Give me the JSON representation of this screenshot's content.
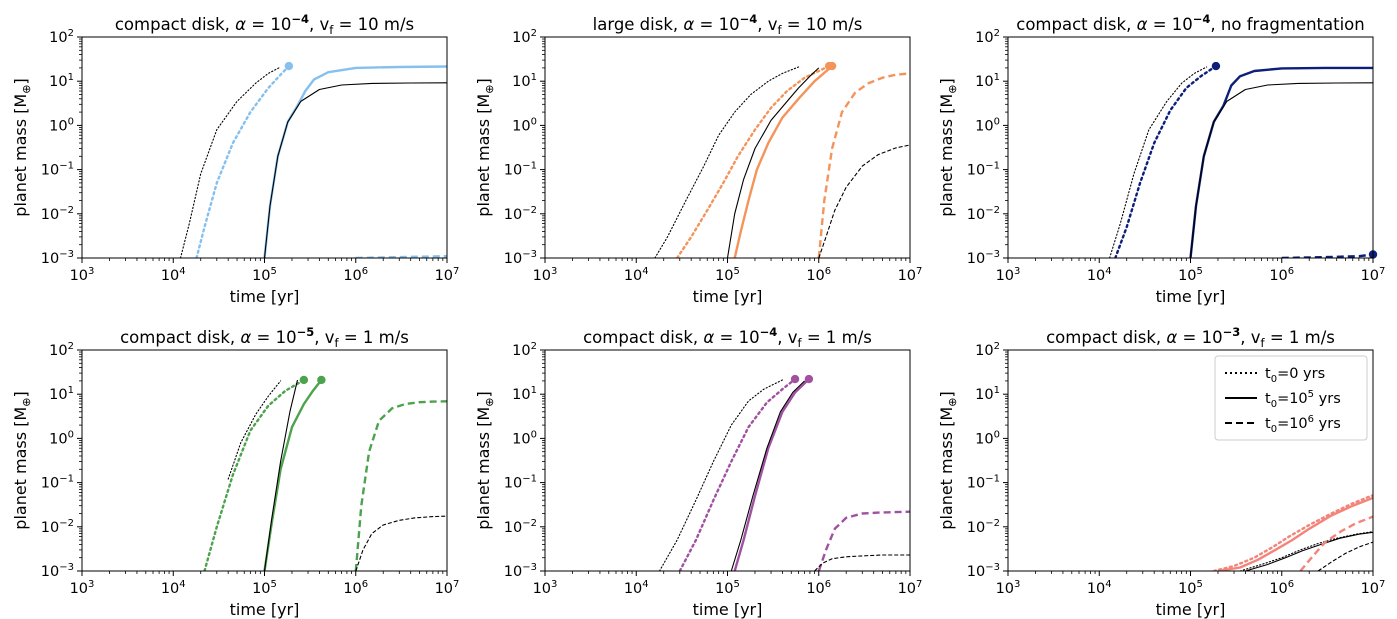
{
  "figure": {
    "ylabel": "planet mass [M",
    "ylabel_sub": "⊕",
    "ylabel_close": "]",
    "xlabel": "time [yr]"
  },
  "legend": {
    "entries": [
      {
        "style": "dotted",
        "pre": "t",
        "sub": "0",
        "eq": "=0 yrs",
        "sup": "",
        "post": ""
      },
      {
        "style": "solid",
        "pre": "t",
        "sub": "0",
        "eq": "=10",
        "sup": "5",
        "post": " yrs"
      },
      {
        "style": "dashed",
        "pre": "t",
        "sub": "0",
        "eq": "=10",
        "sup": "6",
        "post": " yrs"
      }
    ]
  },
  "chart_data": [
    {
      "type": "line",
      "title": {
        "pre": "compact disk, ",
        "alpha": "α",
        "eq": " = 10",
        "exp": "−4",
        "post": ", v",
        "sub": "f",
        "tail": " = 10 m/s"
      },
      "xscale": "log",
      "yscale": "log",
      "xlim": [
        1000,
        10000000
      ],
      "ylim": [
        0.001,
        100
      ],
      "color": "#85C0EE",
      "series": [
        {
          "style": "dotted",
          "color": "#85C0EE",
          "x": [
            18000,
            22000,
            30000,
            45000,
            70000,
            110000,
            150000,
            185000
          ],
          "y": [
            0.001,
            0.005,
            0.05,
            0.4,
            2.0,
            7.0,
            14.0,
            22.0
          ],
          "end_marker": true
        },
        {
          "style": "dotted",
          "color": "#000000",
          "x": [
            12000,
            15000,
            20000,
            30000,
            50000,
            80000,
            110000,
            150000
          ],
          "y": [
            0.001,
            0.006,
            0.08,
            0.8,
            3.5,
            9.0,
            15.0,
            21.0
          ]
        },
        {
          "style": "solid",
          "color": "#85C0EE",
          "x": [
            100000,
            115000,
            140000,
            180000,
            230000,
            280000,
            350000,
            500000,
            1000000,
            3000000,
            10000000
          ],
          "y": [
            0.001,
            0.015,
            0.2,
            1.2,
            2.8,
            6.0,
            11.0,
            16.0,
            20.0,
            21.0,
            21.5
          ]
        },
        {
          "style": "solid",
          "color": "#000000",
          "x": [
            100000,
            115000,
            140000,
            180000,
            250000,
            400000,
            700000,
            1500000,
            4000000,
            10000000
          ],
          "y": [
            0.001,
            0.015,
            0.2,
            1.2,
            3.5,
            6.5,
            8.2,
            8.9,
            9.1,
            9.2
          ]
        },
        {
          "style": "dashed",
          "color": "#85C0EE",
          "x": [
            1000000,
            3000000,
            10000000
          ],
          "y": [
            0.001,
            0.00105,
            0.0011
          ]
        },
        {
          "style": "dashed",
          "color": "#000000",
          "x": [
            1000000,
            3000000,
            10000000
          ],
          "y": [
            0.001,
            0.001,
            0.001
          ]
        }
      ]
    },
    {
      "type": "line",
      "title": {
        "pre": "large disk, ",
        "alpha": "α",
        "eq": " = 10",
        "exp": "−4",
        "post": ", v",
        "sub": "f",
        "tail": " = 10 m/s"
      },
      "xscale": "log",
      "yscale": "log",
      "xlim": [
        1000,
        10000000
      ],
      "ylim": [
        0.001,
        100
      ],
      "color": "#F4945A",
      "series": [
        {
          "style": "dotted",
          "color": "#F4945A",
          "x": [
            28000,
            40000,
            60000,
            90000,
            130000,
            200000,
            300000,
            450000,
            700000,
            1300000
          ],
          "y": [
            0.001,
            0.003,
            0.012,
            0.05,
            0.2,
            0.8,
            2.5,
            6.0,
            12.0,
            22.0
          ],
          "end_marker": true
        },
        {
          "style": "dotted",
          "color": "#000000",
          "x": [
            16000,
            22000,
            35000,
            55000,
            80000,
            120000,
            180000,
            280000,
            400000,
            600000
          ],
          "y": [
            0.001,
            0.003,
            0.02,
            0.12,
            0.6,
            2.0,
            5.0,
            10.0,
            15.0,
            21.0
          ]
        },
        {
          "style": "solid",
          "color": "#F4945A",
          "x": [
            120000,
            140000,
            170000,
            210000,
            280000,
            400000,
            600000,
            900000,
            1400000
          ],
          "y": [
            0.001,
            0.004,
            0.02,
            0.1,
            0.4,
            1.5,
            4.0,
            10.0,
            22.0
          ],
          "end_marker": true
        },
        {
          "style": "solid",
          "color": "#000000",
          "x": [
            100000,
            120000,
            150000,
            200000,
            300000,
            450000,
            600000,
            800000,
            1000000
          ],
          "y": [
            0.001,
            0.01,
            0.06,
            0.3,
            1.3,
            3.5,
            7.0,
            13.0,
            20.0
          ]
        },
        {
          "style": "dashed",
          "color": "#F4945A",
          "x": [
            1000000,
            1150000,
            1400000,
            1800000,
            2500000,
            3500000,
            5000000,
            7000000,
            10000000
          ],
          "y": [
            0.001,
            0.02,
            0.3,
            2.0,
            5.5,
            9.0,
            12.0,
            14.0,
            15.0
          ]
        },
        {
          "style": "dashed",
          "color": "#000000",
          "x": [
            1000000,
            1200000,
            1500000,
            2000000,
            3000000,
            4500000,
            7000000,
            10000000
          ],
          "y": [
            0.001,
            0.003,
            0.012,
            0.04,
            0.12,
            0.22,
            0.31,
            0.36
          ]
        }
      ]
    },
    {
      "type": "line",
      "title": {
        "pre": "compact disk, ",
        "alpha": "α",
        "eq": " = 10",
        "exp": "−4",
        "post": ", no fragmentation",
        "sub": "",
        "tail": ""
      },
      "xscale": "log",
      "yscale": "log",
      "xlim": [
        1000,
        10000000
      ],
      "ylim": [
        0.001,
        100
      ],
      "color": "#0D1F7A",
      "series": [
        {
          "style": "dotted",
          "color": "#0D1F7A",
          "x": [
            15000,
            20000,
            28000,
            40000,
            60000,
            90000,
            130000,
            190000
          ],
          "y": [
            0.001,
            0.005,
            0.05,
            0.4,
            2.2,
            7.0,
            13.0,
            22.0
          ],
          "end_marker": true
        },
        {
          "style": "dotted",
          "color": "#000000",
          "x": [
            13000,
            17000,
            24000,
            35000,
            55000,
            80000,
            110000,
            150000
          ],
          "y": [
            0.001,
            0.006,
            0.08,
            0.8,
            3.5,
            9.0,
            15.0,
            21.0
          ]
        },
        {
          "style": "solid",
          "color": "#0D1F7A",
          "x": [
            100000,
            115000,
            140000,
            180000,
            230000,
            280000,
            350000,
            500000,
            1000000,
            3000000,
            10000000
          ],
          "y": [
            0.001,
            0.015,
            0.2,
            1.2,
            2.8,
            8.0,
            13.0,
            17.0,
            19.5,
            20.0,
            20.0
          ]
        },
        {
          "style": "solid",
          "color": "#000000",
          "x": [
            100000,
            115000,
            140000,
            180000,
            250000,
            400000,
            700000,
            1500000,
            4000000,
            10000000
          ],
          "y": [
            0.001,
            0.015,
            0.2,
            1.2,
            3.5,
            6.5,
            8.2,
            8.9,
            9.1,
            9.2
          ]
        },
        {
          "style": "dashed",
          "color": "#0D1F7A",
          "x": [
            1000000,
            3000000,
            7000000,
            10000000
          ],
          "y": [
            0.001,
            0.00105,
            0.0011,
            0.0012
          ],
          "end_marker": true
        },
        {
          "style": "dashed",
          "color": "#000000",
          "x": [
            1000000,
            3000000,
            10000000
          ],
          "y": [
            0.001,
            0.001,
            0.001
          ]
        }
      ]
    },
    {
      "type": "line",
      "title": {
        "pre": "compact disk, ",
        "alpha": "α",
        "eq": " = 10",
        "exp": "−5",
        "post": ", v",
        "sub": "f",
        "tail": " = 1 m/s"
      },
      "xscale": "log",
      "yscale": "log",
      "xlim": [
        1000,
        10000000
      ],
      "ylim": [
        0.001,
        100
      ],
      "color": "#4DA24D",
      "series": [
        {
          "style": "dotted",
          "color": "#4DA24D",
          "x": [
            22000,
            30000,
            45000,
            70000,
            110000,
            170000,
            270000
          ],
          "y": [
            0.001,
            0.01,
            0.15,
            1.5,
            5.5,
            12.0,
            21.0
          ],
          "end_marker": true
        },
        {
          "style": "dotted",
          "color": "#000000",
          "x": [
            40000,
            55000,
            80000,
            110000,
            150000
          ],
          "y": [
            0.12,
            0.8,
            3.5,
            9.0,
            20.0
          ]
        },
        {
          "style": "solid",
          "color": "#4DA24D",
          "x": [
            100000,
            120000,
            150000,
            200000,
            270000,
            340000,
            420000
          ],
          "y": [
            0.001,
            0.012,
            0.2,
            1.8,
            6.0,
            12.0,
            21.0
          ],
          "end_marker": true
        },
        {
          "style": "solid",
          "color": "#000000",
          "x": [
            100000,
            120000,
            150000,
            190000,
            230000
          ],
          "y": [
            0.001,
            0.015,
            0.3,
            4.0,
            21.0
          ]
        },
        {
          "style": "dashed",
          "color": "#4DA24D",
          "x": [
            1000000,
            1150000,
            1400000,
            1800000,
            2500000,
            3500000,
            5000000,
            7000000,
            10000000
          ],
          "y": [
            0.001,
            0.03,
            0.5,
            2.5,
            4.8,
            6.0,
            6.6,
            6.8,
            6.9
          ]
        },
        {
          "style": "dashed",
          "color": "#000000",
          "x": [
            1000000,
            1200000,
            1500000,
            2000000,
            3000000,
            4500000,
            7000000,
            10000000
          ],
          "y": [
            0.001,
            0.003,
            0.007,
            0.011,
            0.014,
            0.016,
            0.017,
            0.0175
          ]
        }
      ]
    },
    {
      "type": "line",
      "title": {
        "pre": "compact disk, ",
        "alpha": "α",
        "eq": " = 10",
        "exp": "−4",
        "post": ", v",
        "sub": "f",
        "tail": " = 1 m/s"
      },
      "xscale": "log",
      "yscale": "log",
      "xlim": [
        1000,
        10000000
      ],
      "ylim": [
        0.001,
        100
      ],
      "color": "#A052A0",
      "series": [
        {
          "style": "dotted",
          "color": "#A052A0",
          "x": [
            30000,
            45000,
            70000,
            110000,
            170000,
            270000,
            400000,
            550000
          ],
          "y": [
            0.001,
            0.005,
            0.04,
            0.3,
            1.8,
            6.5,
            13.0,
            22.0
          ],
          "end_marker": true
        },
        {
          "style": "dotted",
          "color": "#000000",
          "x": [
            18000,
            28000,
            45000,
            70000,
            110000,
            170000,
            250000,
            400000
          ],
          "y": [
            0.001,
            0.005,
            0.04,
            0.3,
            2.0,
            7.0,
            13.0,
            21.0
          ]
        },
        {
          "style": "solid",
          "color": "#A052A0",
          "x": [
            120000,
            150000,
            200000,
            280000,
            400000,
            550000,
            780000
          ],
          "y": [
            0.001,
            0.005,
            0.05,
            0.6,
            4.0,
            11.0,
            22.0
          ],
          "end_marker": true
        },
        {
          "style": "solid",
          "color": "#000000",
          "x": [
            110000,
            140000,
            190000,
            270000,
            380000,
            520000,
            700000
          ],
          "y": [
            0.001,
            0.005,
            0.05,
            0.6,
            4.0,
            11.0,
            20.0
          ]
        },
        {
          "style": "dashed",
          "color": "#A052A0",
          "x": [
            1000000,
            1200000,
            1500000,
            2000000,
            3000000,
            4500000,
            7000000,
            10000000
          ],
          "y": [
            0.001,
            0.003,
            0.009,
            0.016,
            0.02,
            0.021,
            0.0215,
            0.022
          ]
        },
        {
          "style": "dashed",
          "color": "#000000",
          "x": [
            900000,
            1100000,
            1400000,
            2000000,
            3000000,
            5000000,
            10000000
          ],
          "y": [
            0.001,
            0.0015,
            0.0019,
            0.0021,
            0.0022,
            0.0023,
            0.0023
          ]
        }
      ]
    },
    {
      "type": "line",
      "title": {
        "pre": "compact disk, ",
        "alpha": "α",
        "eq": " = 10",
        "exp": "−3",
        "post": ", v",
        "sub": "f",
        "tail": " = 1 m/s"
      },
      "xscale": "log",
      "yscale": "log",
      "xlim": [
        1000,
        10000000
      ],
      "ylim": [
        0.001,
        100
      ],
      "color": "#F4847A",
      "legend": true,
      "series": [
        {
          "style": "dotted",
          "color": "#F4847A",
          "x": [
            180000,
            300000,
            500000,
            800000,
            1200000,
            2000000,
            3500000,
            6000000,
            10000000
          ],
          "y": [
            0.001,
            0.0013,
            0.002,
            0.0035,
            0.006,
            0.011,
            0.02,
            0.034,
            0.052
          ]
        },
        {
          "style": "solid",
          "color": "#F4847A",
          "x": [
            200000,
            350000,
            550000,
            850000,
            1300000,
            2000000,
            3500000,
            6000000,
            10000000
          ],
          "y": [
            0.001,
            0.0012,
            0.0018,
            0.003,
            0.005,
            0.009,
            0.018,
            0.03,
            0.045
          ]
        },
        {
          "style": "dotted",
          "color": "#000000",
          "x": [
            350000,
            600000,
            1000000,
            1600000,
            2500000,
            4000000,
            6500000,
            10000000
          ],
          "y": [
            0.001,
            0.0014,
            0.002,
            0.003,
            0.0042,
            0.0055,
            0.0068,
            0.0078
          ]
        },
        {
          "style": "solid",
          "color": "#000000",
          "x": [
            400000,
            700000,
            1100000,
            1700000,
            2700000,
            4300000,
            7000000,
            10000000
          ],
          "y": [
            0.001,
            0.0014,
            0.002,
            0.0029,
            0.004,
            0.0055,
            0.0068,
            0.0075
          ]
        },
        {
          "style": "dashed",
          "color": "#F4847A",
          "x": [
            1600000,
            2200000,
            3000000,
            4500000,
            6500000,
            10000000
          ],
          "y": [
            0.001,
            0.0022,
            0.0045,
            0.008,
            0.012,
            0.017
          ]
        },
        {
          "style": "dashed",
          "color": "#000000",
          "x": [
            2500000,
            3500000,
            5000000,
            7000000,
            10000000
          ],
          "y": [
            0.001,
            0.0016,
            0.0025,
            0.0035,
            0.0045
          ]
        }
      ]
    }
  ]
}
